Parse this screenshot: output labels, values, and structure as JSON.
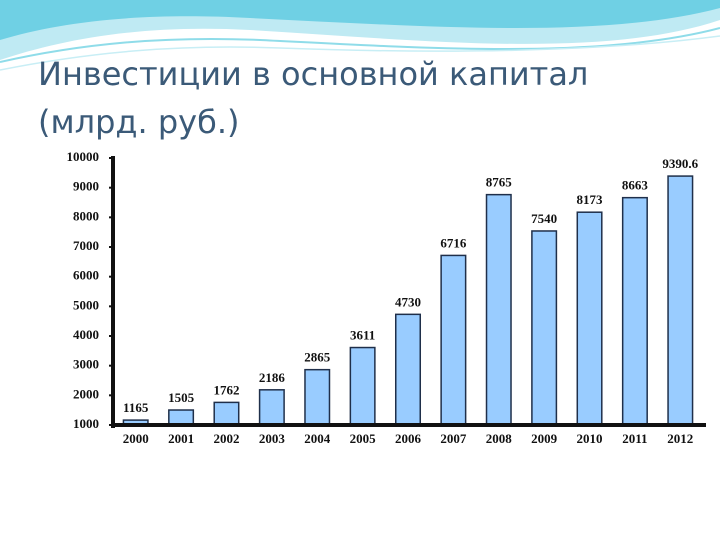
{
  "chart_data": {
    "type": "bar",
    "title": "Инвестиции в основной капитал",
    "subtitle": "(млрд. руб.)",
    "categories": [
      "2000",
      "2001",
      "2002",
      "2003",
      "2004",
      "2005",
      "2006",
      "2007",
      "2008",
      "2009",
      "2010",
      "2011",
      "2012"
    ],
    "values": [
      1165,
      1505,
      1762,
      2186,
      2865,
      3611,
      4730,
      6716,
      8765,
      7540,
      8173,
      8663,
      9390.6
    ],
    "color": "#99ccff",
    "ylim": [
      1000,
      10000
    ],
    "yticks": [
      1000,
      2000,
      3000,
      4000,
      5000,
      6000,
      7000,
      8000,
      9000,
      10000
    ]
  }
}
